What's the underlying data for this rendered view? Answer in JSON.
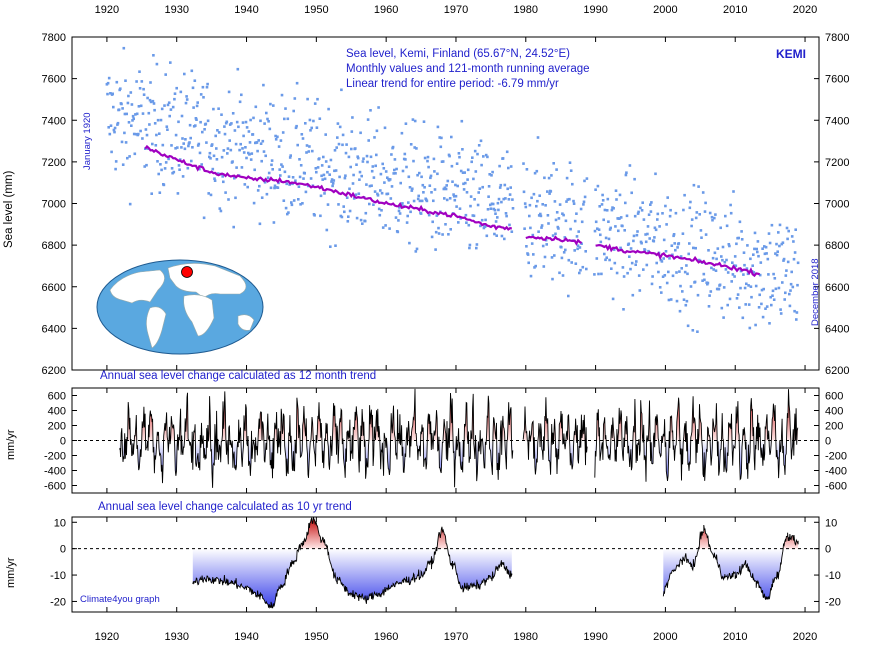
{
  "texts": {
    "info_line1": "Sea level, Kemi, Finland (65.67°N, 24.52°E)",
    "info_line2": "Monthly values and 121-month running average",
    "info_line3": "Linear trend for entire period: -6.79 mm/yr",
    "station": "KEMI",
    "start_label": "January 1920",
    "end_label": "December 2018",
    "annual12_title": "Annual sea level change calculated as 12 month trend",
    "annual10_title": "Annual sea level change calculated as 10 yr trend",
    "credit": "Climate4you graph"
  },
  "colors": {
    "monthly_points": "#6a9ae8",
    "running_average": "#a000c0",
    "positive_fill": "#ff6060",
    "negative_fill": "#2a32e8",
    "annotation_text": "#2222cc",
    "ocean": "#5aa8e0",
    "station_marker": "#ff0000"
  },
  "chart_data": [
    {
      "type": "scatter",
      "name": "monthly-sea-level",
      "ylabel": "Sea level (mm)",
      "xlim": [
        1915,
        2022
      ],
      "ylim": [
        6200,
        7800
      ],
      "x_ticks": [
        1920,
        1930,
        1940,
        1950,
        1960,
        1970,
        1980,
        1990,
        2000,
        2010,
        2020
      ],
      "y_ticks": [
        6200,
        6400,
        6600,
        6800,
        7000,
        7200,
        7400,
        7600,
        7800
      ],
      "series": [
        {
          "kind": "monthly values (scatter)",
          "approx_trend_start_1920": 7420,
          "approx_trend_end_2018": 6650,
          "scatter_spread": 300
        },
        {
          "kind": "121-month running average",
          "x": [
            1925.5,
            1930,
            1935,
            1940,
            1945,
            1950,
            1955,
            1960,
            1965,
            1970,
            1975,
            1978,
            1980,
            1985,
            1988,
            1990,
            1995,
            2000,
            2005,
            2010,
            2013.5
          ],
          "y": [
            7270,
            7210,
            7150,
            7120,
            7110,
            7080,
            7040,
            7000,
            6970,
            6940,
            6890,
            6880,
            6840,
            6830,
            6810,
            6800,
            6770,
            6750,
            6720,
            6690,
            6660
          ]
        }
      ],
      "gaps": [
        [
          1978.2,
          1979.6
        ],
        [
          1988.8,
          1989.8
        ]
      ]
    },
    {
      "type": "area",
      "name": "annual-change-12-month-trend",
      "ylabel": "mm/yr",
      "ylim": [
        -700,
        700
      ],
      "y_ticks": [
        -600,
        -400,
        -200,
        0,
        200,
        400,
        600
      ],
      "x_range": [
        1921.8,
        2019
      ],
      "gaps": [
        [
          1978.2,
          1979.6
        ],
        [
          1988.8,
          1989.8
        ]
      ],
      "typical_amplitude": 450,
      "peak_positive": 700,
      "peak_negative": -680,
      "zero_line": "dashed"
    },
    {
      "type": "area",
      "name": "annual-change-10-yr-trend",
      "ylabel": "mm/yr",
      "ylim": [
        -24,
        12
      ],
      "y_ticks": [
        -20,
        -10,
        0,
        10
      ],
      "segments": [
        {
          "x": [
            1932.3,
            1934,
            1936,
            1938,
            1940,
            1942,
            1943.5,
            1945,
            1946.5,
            1948,
            1949.5,
            1951,
            1953,
            1955,
            1957,
            1959,
            1961,
            1963,
            1965,
            1966.5,
            1968,
            1969.5,
            1971,
            1973,
            1975,
            1976.5,
            1978
          ],
          "y": [
            -13,
            -11,
            -12,
            -13,
            -15,
            -18,
            -22,
            -14,
            -6,
            2,
            11,
            3,
            -12,
            -17,
            -19,
            -17,
            -14,
            -12,
            -10,
            -5,
            7,
            -6,
            -15,
            -14,
            -11,
            -6,
            -10
          ]
        },
        {
          "x": [
            1999.7,
            2001,
            2002.5,
            2004,
            2005.5,
            2007,
            2008.5,
            2010,
            2011.5,
            2013,
            2014.5,
            2016,
            2017.5,
            2019
          ],
          "y": [
            -16,
            -9,
            -4,
            -6,
            7,
            -3,
            -11,
            -10,
            -6,
            -13,
            -19,
            -10,
            5,
            3
          ]
        }
      ],
      "zero_line": "dashed"
    }
  ]
}
